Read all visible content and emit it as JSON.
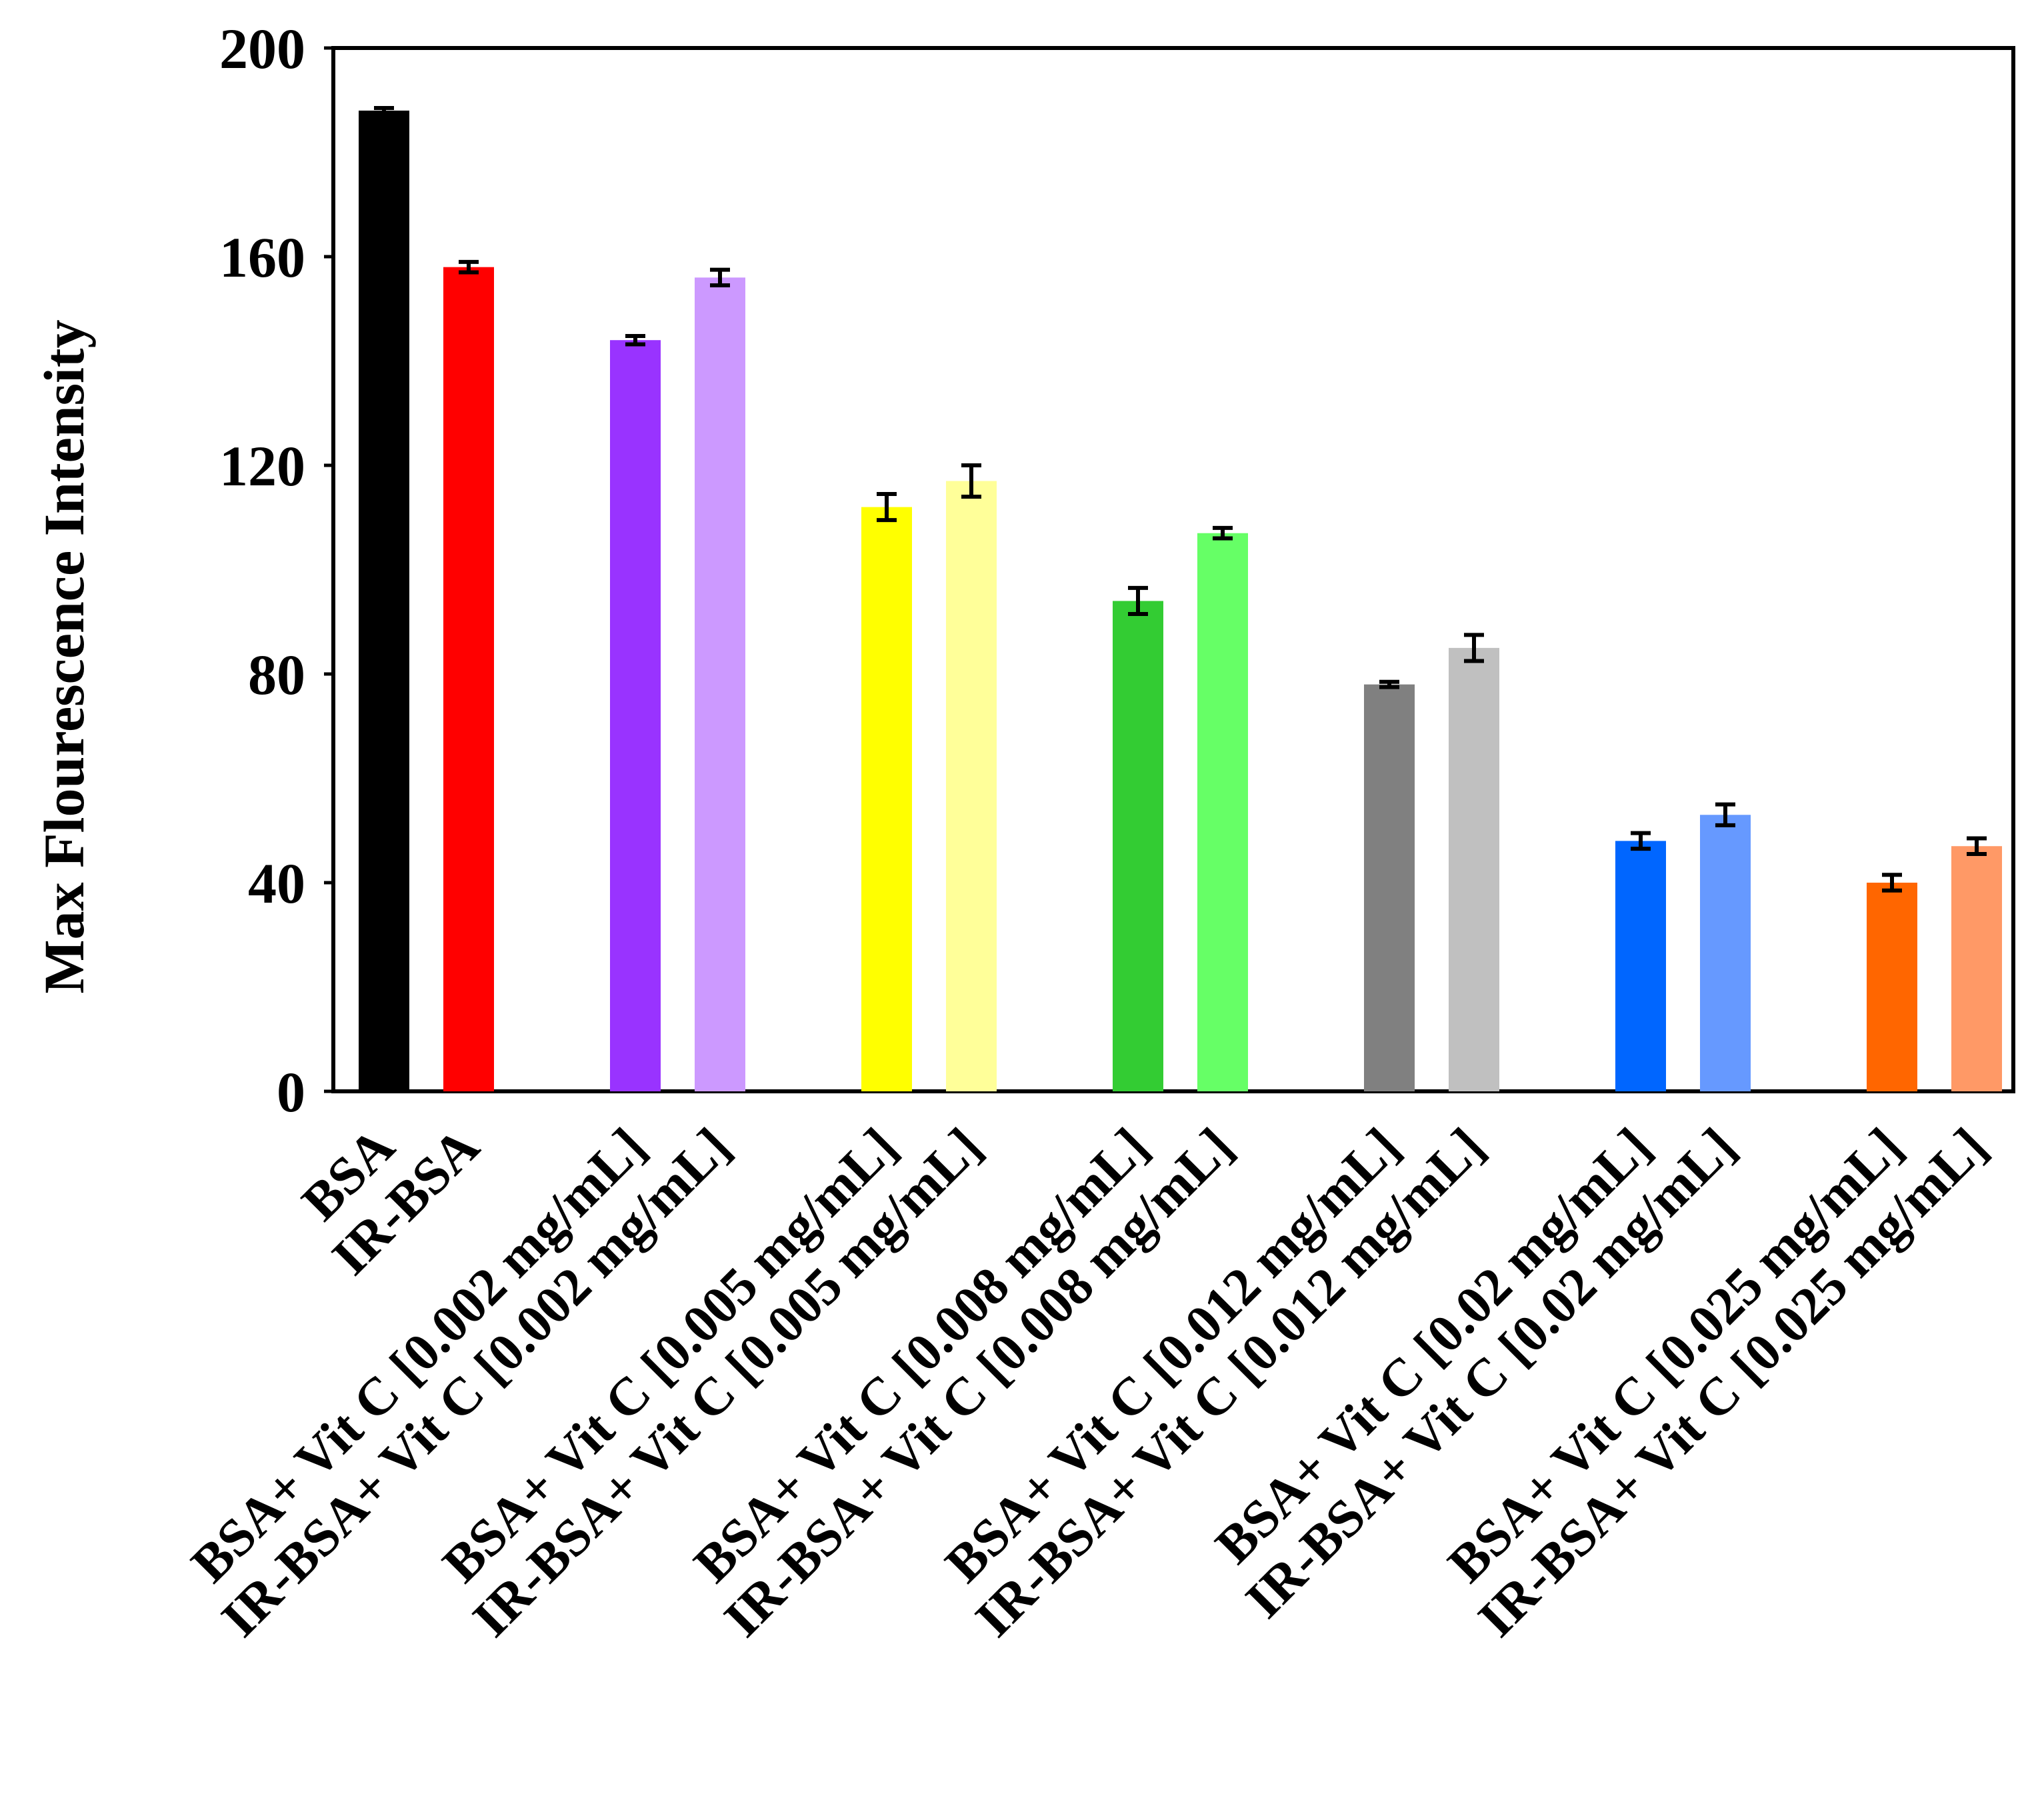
{
  "chart_data": {
    "type": "bar",
    "title": "",
    "xlabel": "",
    "ylabel": "Max Flourescence Intensity",
    "ylim": [
      0,
      200
    ],
    "yticks": [
      0,
      40,
      80,
      120,
      160,
      200
    ],
    "grid": false,
    "legend": "none",
    "categories": [
      "BSA",
      "IR-BSA",
      "BSA+ Vit C [0.002 mg/mL]",
      "IR-BSA+ Vit C [0.002 mg/mL]",
      "BSA+ Vit C [0.005 mg/mL]",
      "IR-BSA+ Vit C [0.005 mg/mL]",
      "BSA+ Vit C [0.008 mg/mL]",
      "IR-BSA+ Vit C [0.008 mg/mL]",
      "BSA+ Vit C [0.012 mg/mL]",
      "IR-BSA+ Vit C [0.012 mg/mL]",
      "BSA+ Vit C [0.02 mg/mL]",
      "IR-BSA+ Vit C [0.02 mg/mL]",
      "BSA+ Vit C [0.025 mg/mL]",
      "IR-BSA+ Vit C [0.025 mg/mL]"
    ],
    "values": [
      188,
      158,
      144,
      156,
      112,
      117,
      94,
      107,
      78,
      85,
      48,
      53,
      40,
      47
    ],
    "errors": [
      0.5,
      1,
      0.8,
      1.5,
      2.5,
      3,
      2.5,
      1,
      0.5,
      2.5,
      1.5,
      2,
      1.5,
      1.5
    ],
    "colors": [
      "#000000",
      "#ff0000",
      "#9933ff",
      "#cc99ff",
      "#ffff00",
      "#ffff99",
      "#33cc33",
      "#66ff66",
      "#808080",
      "#c0c0c0",
      "#0066ff",
      "#6699ff",
      "#ff6600",
      "#ff9966"
    ]
  }
}
